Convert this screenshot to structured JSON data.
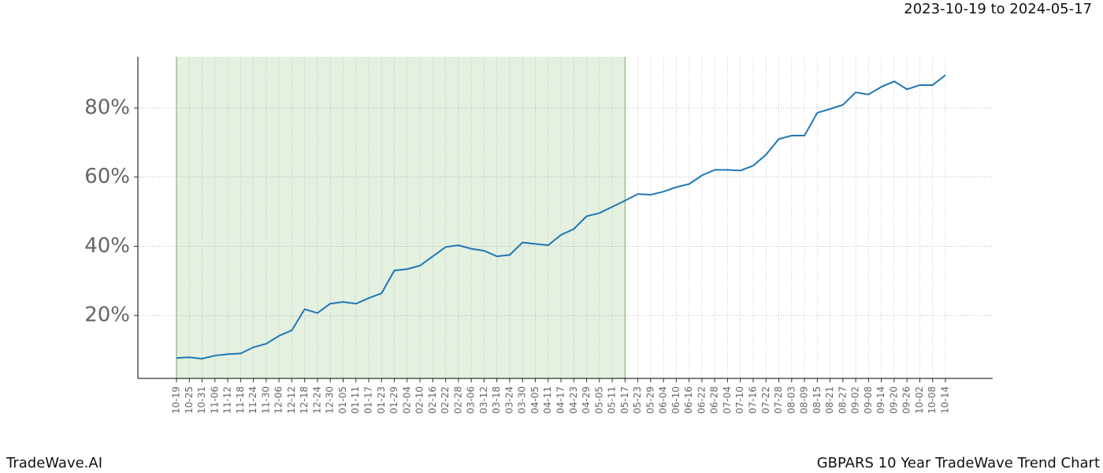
{
  "chart_data": {
    "type": "line",
    "title": "2023-10-19 to 2024-05-17",
    "footer_left": "TradeWave.AI",
    "footer_right": "GBPARS 10 Year TradeWave Trend Chart",
    "x": [
      "10-19",
      "10-25",
      "10-31",
      "11-06",
      "11-12",
      "11-18",
      "11-24",
      "11-30",
      "12-06",
      "12-12",
      "12-18",
      "12-24",
      "12-30",
      "01-05",
      "01-11",
      "01-17",
      "01-23",
      "01-29",
      "02-04",
      "02-10",
      "02-16",
      "02-22",
      "02-28",
      "03-06",
      "03-12",
      "03-18",
      "03-24",
      "03-30",
      "04-05",
      "04-11",
      "04-17",
      "04-23",
      "04-29",
      "05-05",
      "05-11",
      "05-17",
      "05-23",
      "05-29",
      "06-04",
      "06-10",
      "06-16",
      "06-22",
      "06-28",
      "07-04",
      "07-10",
      "07-16",
      "07-22",
      "07-28",
      "08-03",
      "08-09",
      "08-15",
      "08-21",
      "08-27",
      "09-02",
      "09-08",
      "09-14",
      "09-20",
      "09-26",
      "10-02",
      "10-08",
      "10-14"
    ],
    "series": [
      {
        "color": "#1f77b4",
        "values": [
          7.7,
          7.9,
          7.5,
          8.4,
          8.8,
          9.0,
          10.8,
          11.8,
          14.1,
          15.7,
          21.8,
          20.7,
          23.4,
          23.9,
          23.4,
          25.0,
          26.4,
          33.0,
          33.4,
          34.4,
          37.1,
          39.8,
          40.3,
          39.3,
          38.7,
          37.1,
          37.5,
          41.1,
          40.7,
          40.3,
          43.3,
          45.0,
          48.7,
          49.6,
          51.4,
          53.2,
          55.1,
          54.9,
          55.8,
          57.1,
          58.0,
          60.5,
          62.1,
          62.1,
          61.9,
          63.3,
          66.5,
          71.0,
          72.0,
          72.0,
          78.6,
          79.7,
          80.9,
          84.5,
          83.9,
          86.1,
          87.7,
          85.4,
          86.6,
          86.6,
          89.5
        ]
      }
    ],
    "ylim": [
      1.8,
      94.8
    ],
    "yticks": [
      {
        "value": 20,
        "label": "20%"
      },
      {
        "value": 40,
        "label": "40%"
      },
      {
        "value": 60,
        "label": "60%"
      },
      {
        "value": 80,
        "label": "80%"
      }
    ],
    "shaded_range": [
      "10-19",
      "05-17"
    ],
    "shaded_color": "#d9ead3",
    "grid": true
  }
}
